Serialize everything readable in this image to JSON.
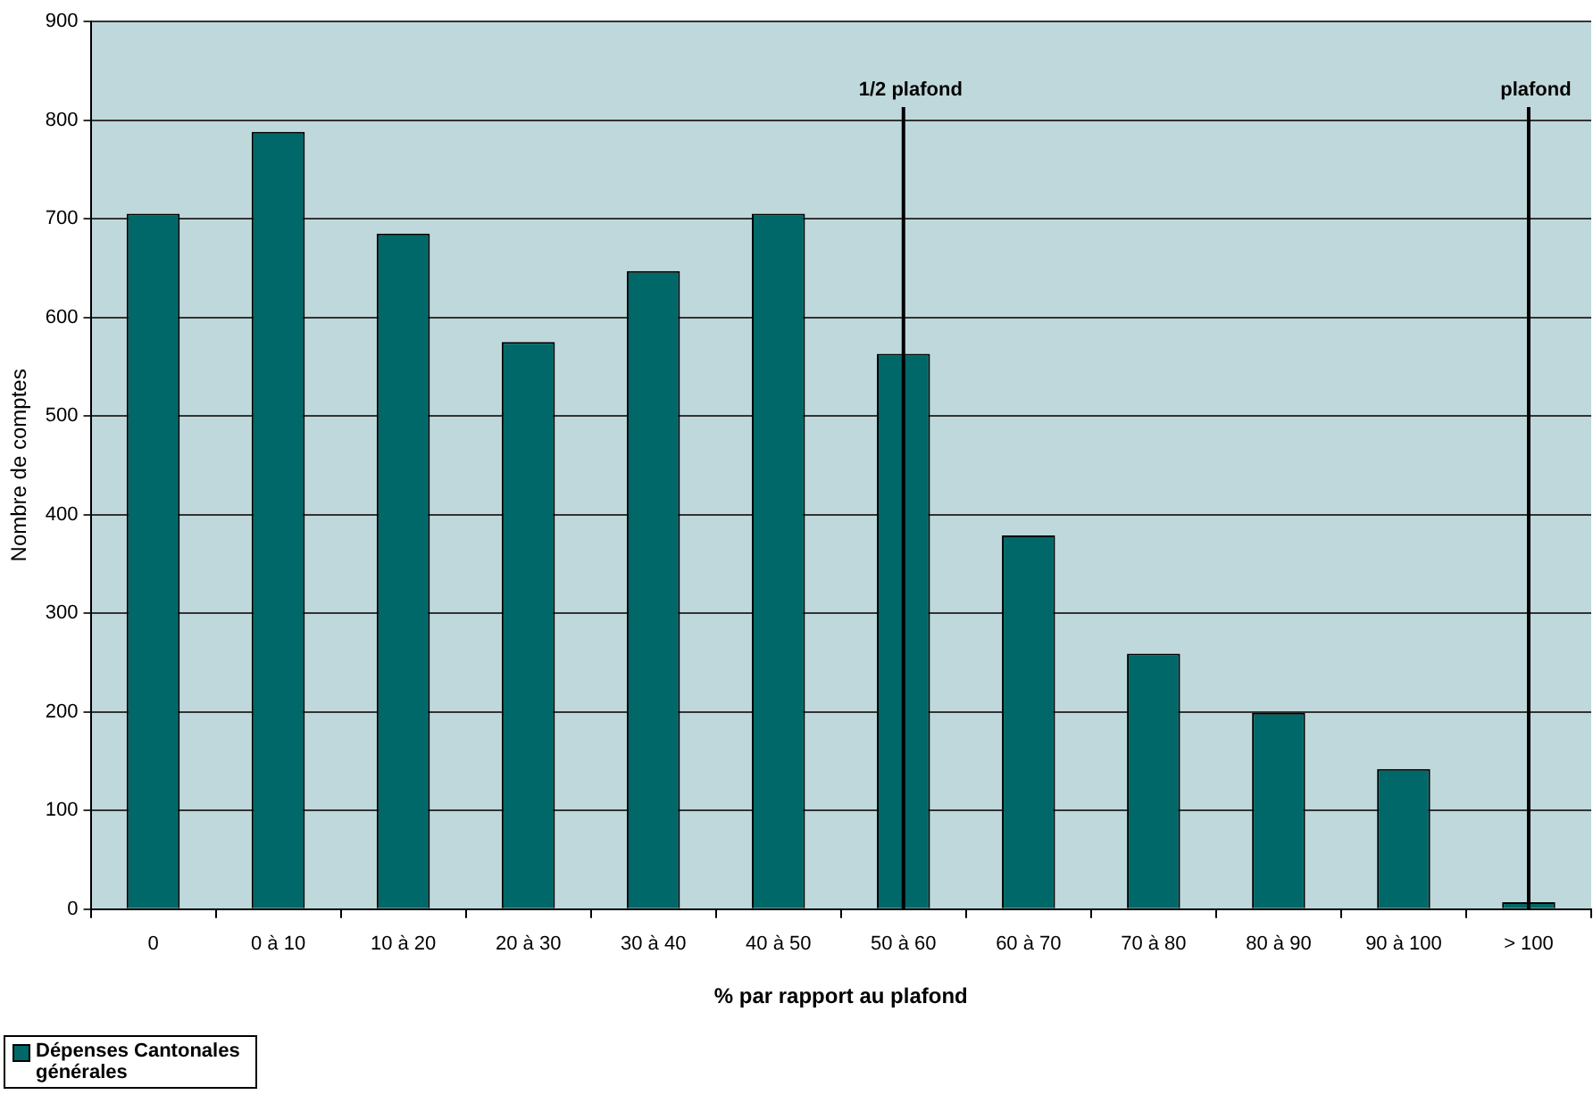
{
  "chart_data": {
    "type": "bar",
    "xlabel": "% par rapport au plafond",
    "ylabel": "Nombre de comptes",
    "categories": [
      "0",
      "0 à 10",
      "10 à 20",
      "20 à 30",
      "30 à 40",
      "40 à 50",
      "50 à 60",
      "60 à 70",
      "70 à 80",
      "80 à 90",
      "90 à 100",
      "> 100"
    ],
    "series": [
      {
        "name": "Dépenses Cantonales générales",
        "color": "#006868",
        "values": [
          705,
          788,
          685,
          575,
          647,
          705,
          563,
          379,
          259,
          199,
          142,
          7
        ]
      }
    ],
    "ylim": [
      0,
      900
    ],
    "yticks": [
      0,
      100,
      200,
      300,
      400,
      500,
      600,
      700,
      800,
      900
    ],
    "grid": "y",
    "legend": "bottom left",
    "ref_lines": [
      {
        "axis": "x",
        "value": "50 à 60",
        "label": "1/2 plafond",
        "color": "#000000"
      },
      {
        "axis": "x",
        "value": "> 100",
        "label": "plafond",
        "color": "#000000"
      }
    ]
  }
}
